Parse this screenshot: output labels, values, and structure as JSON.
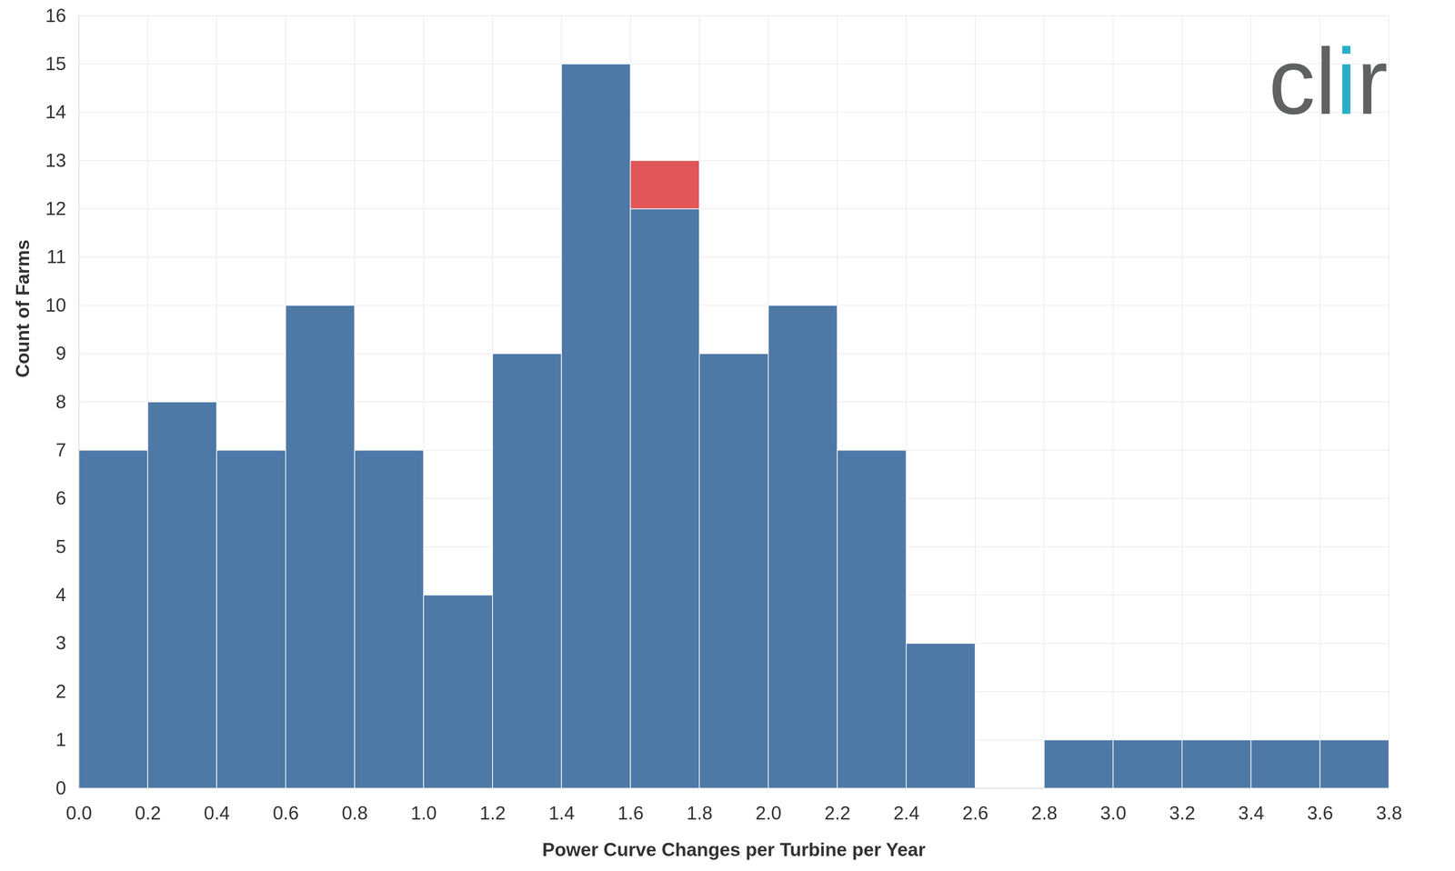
{
  "chart_data": {
    "type": "histogram",
    "x_label": "Power Curve Changes per Turbine per Year",
    "y_label": "Count of Farms",
    "annotations": [
      "clir"
    ],
    "bins": [
      0,
      0.2,
      0.4,
      0.6,
      0.8,
      1,
      1.2,
      1.4,
      1.6,
      1.8,
      2,
      2.2,
      2.4,
      2.6,
      2.8,
      3,
      3.2,
      3.4,
      3.6,
      3.8
    ],
    "series": [
      {
        "color": "#4e79a7",
        "values": [
          7,
          8,
          7,
          10,
          7,
          4,
          9,
          15,
          12,
          9,
          10,
          7,
          3,
          0,
          1,
          1,
          1,
          1,
          1
        ]
      },
      {
        "color": "#e15759",
        "values": [
          0,
          0,
          0,
          0,
          0,
          0,
          0,
          0,
          1,
          0,
          0,
          0,
          0,
          0,
          0,
          0,
          0,
          0,
          0
        ]
      }
    ],
    "stacked": true,
    "xlim": [
      0,
      3.8
    ],
    "xticks": [
      {
        "value": 0,
        "label": "0.0"
      },
      0.2,
      0.4,
      0.6,
      0.8,
      {
        "value": 1,
        "label": "1.0"
      },
      1.2,
      1.4,
      1.6,
      1.8,
      {
        "value": 2,
        "label": "2.0"
      },
      2.2,
      2.4,
      2.6,
      2.8,
      {
        "value": 3,
        "label": "3.0"
      },
      3.2,
      3.4,
      3.6,
      3.8
    ],
    "ylim": [
      0,
      16
    ],
    "yticks": [
      0,
      1,
      2,
      3,
      4,
      5,
      6,
      7,
      8,
      9,
      10,
      11,
      12,
      13,
      14,
      15,
      16
    ],
    "grid": true
  }
}
